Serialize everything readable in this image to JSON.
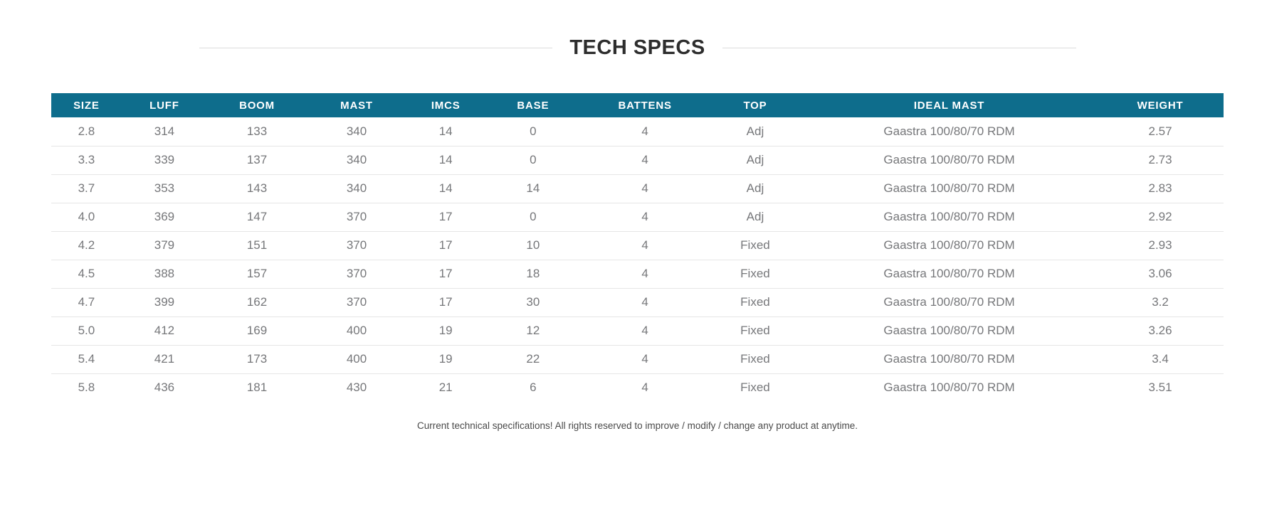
{
  "title": {
    "text": "TECH SPECS"
  },
  "table": {
    "columns": [
      "SIZE",
      "LUFF",
      "BOOM",
      "MAST",
      "IMCS",
      "BASE",
      "BATTENS",
      "TOP",
      "IDEAL MAST",
      "WEIGHT"
    ],
    "rows": [
      [
        "2.8",
        "314",
        "133",
        "340",
        "14",
        "0",
        "4",
        "Adj",
        "Gaastra 100/80/70 RDM",
        "2.57"
      ],
      [
        "3.3",
        "339",
        "137",
        "340",
        "14",
        "0",
        "4",
        "Adj",
        "Gaastra 100/80/70 RDM",
        "2.73"
      ],
      [
        "3.7",
        "353",
        "143",
        "340",
        "14",
        "14",
        "4",
        "Adj",
        "Gaastra 100/80/70 RDM",
        "2.83"
      ],
      [
        "4.0",
        "369",
        "147",
        "370",
        "17",
        "0",
        "4",
        "Adj",
        "Gaastra 100/80/70 RDM",
        "2.92"
      ],
      [
        "4.2",
        "379",
        "151",
        "370",
        "17",
        "10",
        "4",
        "Fixed",
        "Gaastra 100/80/70 RDM",
        "2.93"
      ],
      [
        "4.5",
        "388",
        "157",
        "370",
        "17",
        "18",
        "4",
        "Fixed",
        "Gaastra 100/80/70 RDM",
        "3.06"
      ],
      [
        "4.7",
        "399",
        "162",
        "370",
        "17",
        "30",
        "4",
        "Fixed",
        "Gaastra 100/80/70 RDM",
        "3.2"
      ],
      [
        "5.0",
        "412",
        "169",
        "400",
        "19",
        "12",
        "4",
        "Fixed",
        "Gaastra 100/80/70 RDM",
        "3.26"
      ],
      [
        "5.4",
        "421",
        "173",
        "400",
        "19",
        "22",
        "4",
        "Fixed",
        "Gaastra 100/80/70 RDM",
        "3.4"
      ],
      [
        "5.8",
        "436",
        "181",
        "430",
        "21",
        "6",
        "4",
        "Fixed",
        "Gaastra 100/80/70 RDM",
        "3.51"
      ]
    ]
  },
  "footnote": "Current technical specifications! All rights reserved to improve / modify / change any product at anytime.",
  "colors": {
    "header_bg": "#0e6d8c",
    "header_text": "#ffffff",
    "body_text": "#76777a",
    "title_text": "#2d2d2d",
    "divider": "#dcdcdc",
    "row_border": "#e6e6e6"
  }
}
